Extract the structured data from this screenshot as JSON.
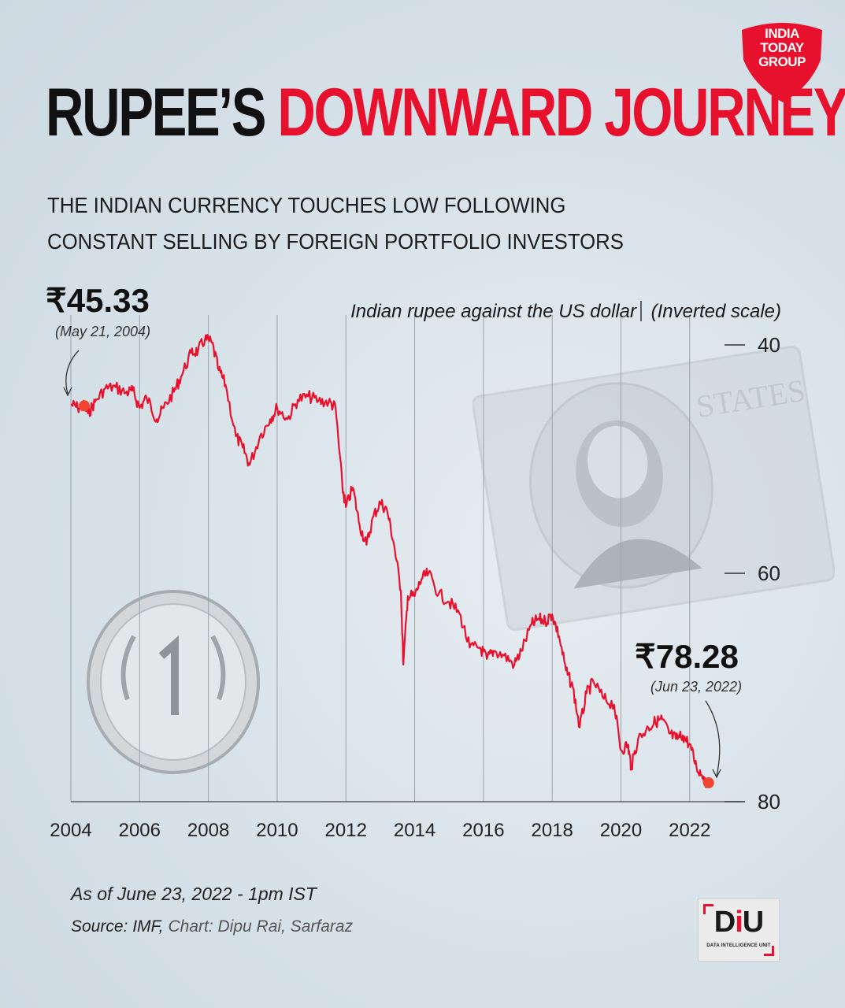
{
  "header": {
    "title_part1": "RUPEE’S",
    "title_part2": "DOWNWARD JOURNEY",
    "subtitle_line1": "THE INDIAN CURRENCY TOUCHES LOW FOLLOWING",
    "subtitle_line2": "CONSTANT SELLING BY FOREIGN PORTFOLIO INVESTORS"
  },
  "logo": {
    "line1": "INDIA",
    "line2": "TODAY",
    "line3": "GROUP",
    "color": "#e8112d"
  },
  "chart_data": {
    "type": "line",
    "title": "Indian rupee against the US dollar",
    "scale_note": "(Inverted scale)",
    "inverted_y": true,
    "ylim": [
      40,
      80
    ],
    "yticks": [
      40,
      60,
      80
    ],
    "xlim": [
      2004,
      2022.6
    ],
    "xticks": [
      2004,
      2006,
      2008,
      2010,
      2012,
      2014,
      2016,
      2018,
      2020,
      2022
    ],
    "grid": "vertical",
    "line_color": "#e8112d",
    "series": [
      {
        "x": [
          2004.0,
          2004.2,
          2004.39,
          2004.5,
          2004.7,
          2005.0,
          2005.3,
          2005.6,
          2005.8,
          2006.0,
          2006.2,
          2006.5,
          2006.7,
          2007.0,
          2007.2,
          2007.5,
          2007.7,
          2007.9,
          2008.1,
          2008.3,
          2008.5,
          2008.8,
          2009.0,
          2009.2,
          2009.5,
          2009.8,
          2010.0,
          2010.3,
          2010.6,
          2010.9,
          2011.2,
          2011.5,
          2011.7,
          2011.9,
          2012.0,
          2012.2,
          2012.4,
          2012.6,
          2012.8,
          2013.0,
          2013.2,
          2013.4,
          2013.6,
          2013.67,
          2013.8,
          2014.0,
          2014.2,
          2014.4,
          2014.7,
          2015.0,
          2015.3,
          2015.6,
          2015.9,
          2016.1,
          2016.3,
          2016.6,
          2016.9,
          2017.1,
          2017.4,
          2017.6,
          2017.8,
          2018.0,
          2018.2,
          2018.4,
          2018.6,
          2018.8,
          2019.0,
          2019.2,
          2019.5,
          2019.8,
          2020.0,
          2020.2,
          2020.3,
          2020.5,
          2020.8,
          2021.0,
          2021.2,
          2021.4,
          2021.6,
          2021.8,
          2022.0,
          2022.2,
          2022.4,
          2022.48
        ],
        "y": [
          45.2,
          45.5,
          45.33,
          46.0,
          45.0,
          43.8,
          43.7,
          44.2,
          44.0,
          45.5,
          44.6,
          46.5,
          45.5,
          44.1,
          42.8,
          40.7,
          40.5,
          39.5,
          39.8,
          42.2,
          43.5,
          48.0,
          49.0,
          50.5,
          48.0,
          46.5,
          45.5,
          46.5,
          44.8,
          44.5,
          44.9,
          45.0,
          45.5,
          52.5,
          54.2,
          52.5,
          55.8,
          57.5,
          55.0,
          53.8,
          54.5,
          57.5,
          61.5,
          68.0,
          62.0,
          62.0,
          60.5,
          60.0,
          61.8,
          62.5,
          63.5,
          66.5,
          66.5,
          67.5,
          66.8,
          67.2,
          68.0,
          66.8,
          64.5,
          64.0,
          64.2,
          63.6,
          65.5,
          68.5,
          70.0,
          73.5,
          70.5,
          69.5,
          71.0,
          71.5,
          75.5,
          75.0,
          77.0,
          74.5,
          73.5,
          73.0,
          72.8,
          74.0,
          74.5,
          74.2,
          75.0,
          77.0,
          77.8,
          78.28
        ]
      }
    ],
    "annotations": [
      {
        "label": "₹45.33",
        "date": "(May 21, 2004)",
        "x": 2004.39,
        "y": 45.33
      },
      {
        "label": "₹78.28",
        "date": "(Jun 23, 2022)",
        "x": 2022.48,
        "y": 78.28
      }
    ]
  },
  "footer": {
    "as_of": "As of June 23, 2022 - 1pm IST",
    "source": "Source: IMF,",
    "credit": "Chart: Dipu Rai, Sarfaraz"
  },
  "badge": {
    "main_left": "D",
    "main_dot": "i",
    "main_right": "U",
    "subtitle": "DATA INTELLIGENCE UNIT"
  }
}
